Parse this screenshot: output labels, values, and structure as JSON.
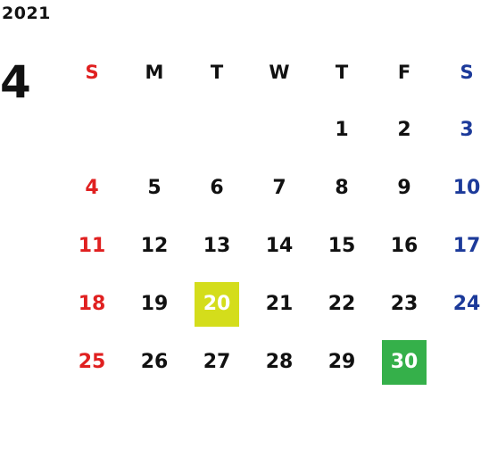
{
  "year": "2021",
  "month": "4",
  "weekdays": [
    "S",
    "M",
    "T",
    "W",
    "T",
    "F",
    "S"
  ],
  "weeks": [
    [
      "",
      "",
      "",
      "",
      "1",
      "2",
      "3"
    ],
    [
      "4",
      "5",
      "6",
      "7",
      "8",
      "9",
      "10"
    ],
    [
      "11",
      "12",
      "13",
      "14",
      "15",
      "16",
      "17"
    ],
    [
      "18",
      "19",
      "20",
      "21",
      "22",
      "23",
      "24"
    ],
    [
      "25",
      "26",
      "27",
      "28",
      "29",
      "30",
      ""
    ]
  ],
  "highlights": [
    {
      "day": "20",
      "color": "#d4dd1b"
    },
    {
      "day": "30",
      "color": "#35b04a"
    }
  ],
  "colors": {
    "sunday": "#e02020",
    "saturday": "#1c3a9a",
    "weekday": "#111111"
  }
}
